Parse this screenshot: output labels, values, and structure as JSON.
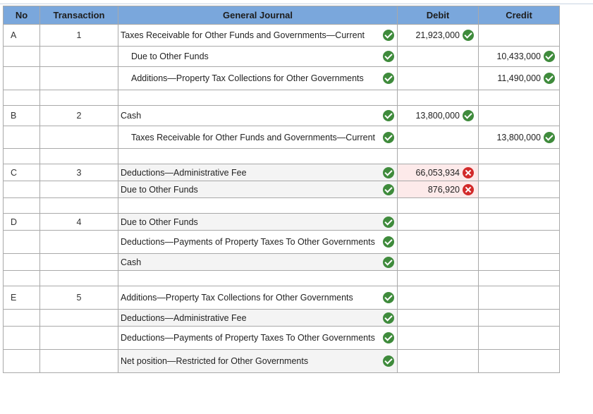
{
  "headers": {
    "no": "No",
    "transaction": "Transaction",
    "journal": "General Journal",
    "debit": "Debit",
    "credit": "Credit"
  },
  "rows": [
    {
      "no": "A",
      "txn": "1",
      "account": "Taxes Receivable for Other Funds and Governments—Current",
      "debit": "21,923,000",
      "credit": ""
    },
    {
      "no": "",
      "txn": "",
      "account": "Due to Other Funds",
      "debit": "",
      "credit": "10,433,000"
    },
    {
      "no": "",
      "txn": "",
      "account": "Additions—Property Tax Collections for Other Governments",
      "debit": "",
      "credit": "11,490,000"
    },
    {
      "no": "B",
      "txn": "2",
      "account": "Cash",
      "debit": "13,800,000",
      "credit": ""
    },
    {
      "no": "",
      "txn": "",
      "account": "Taxes Receivable for Other Funds and Governments—Current",
      "debit": "",
      "credit": "13,800,000"
    },
    {
      "no": "C",
      "txn": "3",
      "account": "Deductions—Administrative Fee",
      "debit": "66,053,934",
      "credit": ""
    },
    {
      "no": "",
      "txn": "",
      "account": "Due to Other Funds",
      "debit": "876,920",
      "credit": ""
    },
    {
      "no": "D",
      "txn": "4",
      "account": "Due to Other Funds",
      "debit": "",
      "credit": ""
    },
    {
      "no": "",
      "txn": "",
      "account": "Deductions—Payments of Property Taxes To Other Governments",
      "debit": "",
      "credit": ""
    },
    {
      "no": "",
      "txn": "",
      "account": "Cash",
      "debit": "",
      "credit": ""
    },
    {
      "no": "E",
      "txn": "5",
      "account": "Additions—Property Tax Collections for Other Governments",
      "debit": "",
      "credit": ""
    },
    {
      "no": "",
      "txn": "",
      "account": "Deductions—Administrative Fee",
      "debit": "",
      "credit": ""
    },
    {
      "no": "",
      "txn": "",
      "account": "Deductions—Payments of Property Taxes To Other Governments",
      "debit": "",
      "credit": ""
    },
    {
      "no": "",
      "txn": "",
      "account": "Net position—Restricted for Other Governments",
      "debit": "",
      "credit": ""
    }
  ],
  "status_icons": {
    "correct": "check-circle-icon",
    "incorrect": "x-circle-icon"
  },
  "colors": {
    "header": "#7aa7dc",
    "correct": "#3f8b3c",
    "incorrect": "#d22a2a"
  }
}
